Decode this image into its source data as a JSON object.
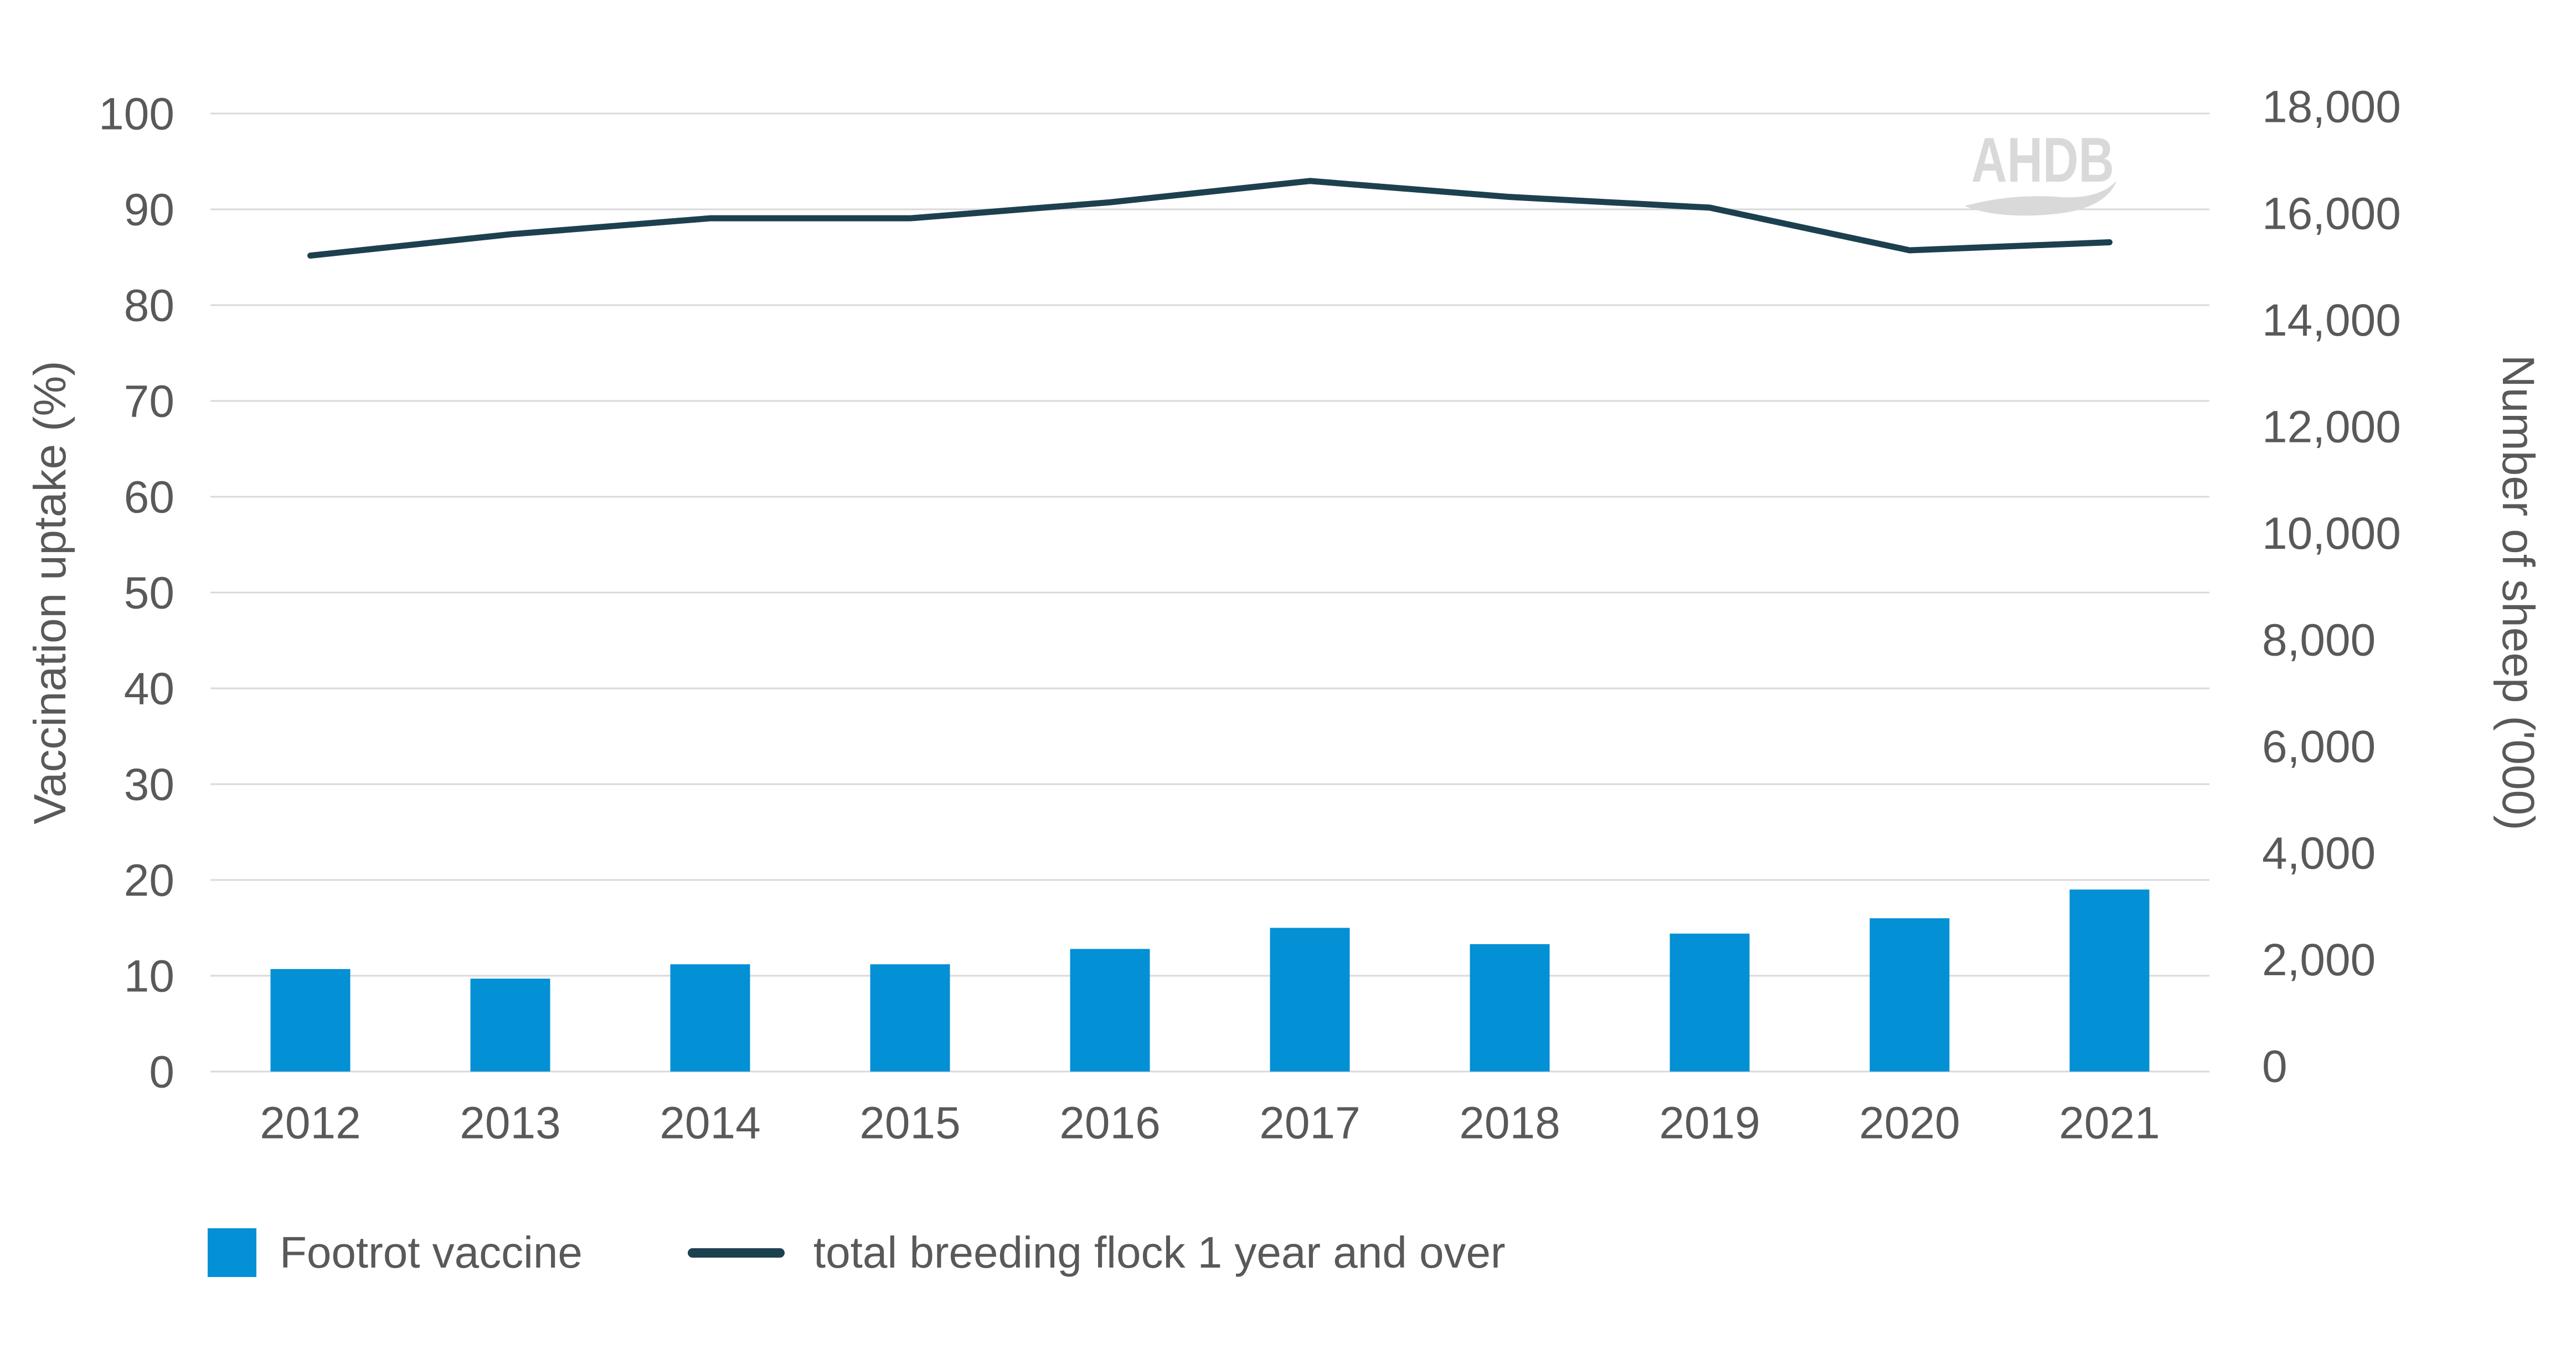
{
  "chart_data": {
    "type": "combo",
    "title": "",
    "categories": [
      "2012",
      "2013",
      "2014",
      "2015",
      "2016",
      "2017",
      "2018",
      "2019",
      "2020",
      "2021"
    ],
    "series": [
      {
        "name": "Footrot vaccine",
        "type": "bar",
        "axis": "left",
        "color": "#0390d4",
        "values": [
          10.7,
          9.7,
          11.2,
          11.2,
          12.8,
          15.0,
          13.3,
          14.4,
          16.0,
          19.0
        ]
      },
      {
        "name": "total breeding flock 1 year and over",
        "type": "line",
        "axis": "right",
        "color": "#1d404f",
        "values": [
          15200,
          15600,
          15900,
          15900,
          16200,
          16600,
          16300,
          16100,
          15300,
          15450
        ]
      }
    ],
    "left_axis": {
      "title": "Vaccination uptake (%)",
      "min": 0,
      "max": 100,
      "step": 10,
      "tick_labels": [
        "0",
        "10",
        "20",
        "30",
        "40",
        "50",
        "60",
        "70",
        "80",
        "90",
        "100"
      ]
    },
    "right_axis": {
      "title": "Number of sheep ('000)",
      "min": 0,
      "max": 18000,
      "step": 2000,
      "tick_labels": [
        "0",
        "2,000",
        "4,000",
        "6,000",
        "8,000",
        "10,000",
        "12,000",
        "14,000",
        "16,000",
        "18,000"
      ]
    },
    "grid": "horizontal",
    "legend_position": "bottom-left",
    "watermark": "AHDB"
  },
  "colors": {
    "bar": "#0390d4",
    "line": "#1d404f",
    "text": "#595959",
    "grid": "#d9d9d9",
    "watermark": "#d9d9d9",
    "background": "#ffffff"
  }
}
